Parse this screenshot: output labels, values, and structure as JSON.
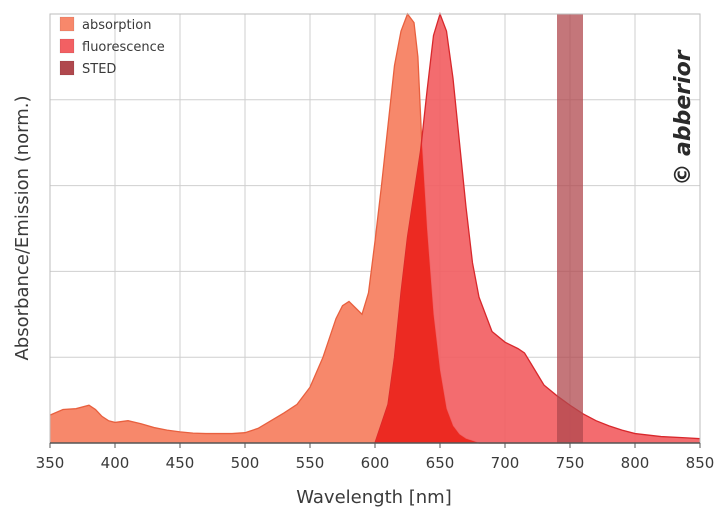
{
  "chart_data": {
    "type": "area",
    "xlabel": "Wavelength [nm]",
    "ylabel": "Absorbance/Emission (norm.)",
    "xlim": [
      350,
      850
    ],
    "ylim": [
      0,
      1
    ],
    "xticks": [
      350,
      400,
      450,
      500,
      550,
      600,
      650,
      700,
      750,
      800,
      850
    ],
    "grid": true,
    "legend_position": "top-left",
    "watermark": "© abberior",
    "colors": {
      "absorption_fill": "#f7886b",
      "absorption_line": "#e8603f",
      "fluorescence_fill": "#f26063",
      "fluorescence_line": "#d8282c",
      "overlap_fill": "#ec2a22",
      "sted": "#b0484e",
      "grid": "#cfcfcf"
    },
    "series": [
      {
        "name": "absorption",
        "x": [
          350,
          360,
          370,
          380,
          385,
          390,
          395,
          400,
          405,
          410,
          420,
          430,
          440,
          450,
          460,
          470,
          480,
          490,
          500,
          510,
          520,
          530,
          540,
          550,
          560,
          570,
          575,
          580,
          585,
          590,
          595,
          600,
          605,
          610,
          615,
          620,
          625,
          630,
          633,
          636,
          640,
          645,
          650,
          655,
          660,
          665,
          670,
          675,
          680,
          690,
          700,
          720,
          750
        ],
        "values": [
          0.065,
          0.078,
          0.08,
          0.088,
          0.078,
          0.062,
          0.052,
          0.048,
          0.05,
          0.052,
          0.045,
          0.036,
          0.03,
          0.026,
          0.023,
          0.022,
          0.022,
          0.022,
          0.024,
          0.034,
          0.052,
          0.07,
          0.09,
          0.13,
          0.2,
          0.29,
          0.32,
          0.33,
          0.315,
          0.3,
          0.35,
          0.47,
          0.6,
          0.74,
          0.88,
          0.96,
          1.0,
          0.98,
          0.9,
          0.7,
          0.5,
          0.3,
          0.17,
          0.08,
          0.04,
          0.02,
          0.01,
          0.005,
          0.0,
          0.0,
          0.0,
          0.0,
          0.0
        ]
      },
      {
        "name": "fluorescence",
        "x": [
          600,
          610,
          615,
          620,
          625,
          630,
          635,
          640,
          645,
          650,
          655,
          660,
          665,
          670,
          675,
          680,
          690,
          700,
          710,
          715,
          720,
          725,
          730,
          740,
          750,
          760,
          770,
          780,
          790,
          800,
          820,
          840,
          850
        ],
        "values": [
          0.0,
          0.09,
          0.2,
          0.35,
          0.48,
          0.58,
          0.68,
          0.82,
          0.95,
          1.0,
          0.96,
          0.85,
          0.7,
          0.55,
          0.42,
          0.34,
          0.26,
          0.235,
          0.22,
          0.21,
          0.185,
          0.16,
          0.135,
          0.11,
          0.088,
          0.068,
          0.052,
          0.04,
          0.03,
          0.022,
          0.015,
          0.012,
          0.01
        ]
      },
      {
        "name": "STED",
        "type": "band",
        "x_range": [
          740,
          760
        ]
      }
    ]
  }
}
